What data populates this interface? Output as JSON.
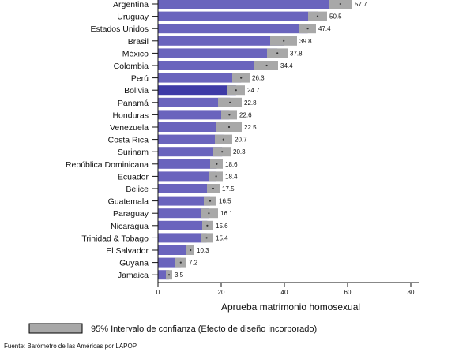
{
  "chart_data": {
    "type": "bar",
    "orientation": "horizontal",
    "categories": [
      "Argentina",
      "Uruguay",
      "Estados Unidos",
      "Brasil",
      "México",
      "Colombia",
      "Perú",
      "Bolivia",
      "Panamá",
      "Honduras",
      "Venezuela",
      "Costa Rica",
      "Surinam",
      "República Dominicana",
      "Ecuador",
      "Belice",
      "Guatemala",
      "Paraguay",
      "Nicaragua",
      "Trinidad & Tobago",
      "El Salvador",
      "Guyana",
      "Jamaica"
    ],
    "values": [
      57.7,
      50.5,
      47.4,
      39.8,
      37.8,
      34.4,
      26.3,
      24.7,
      22.8,
      22.6,
      22.5,
      20.7,
      20.3,
      18.6,
      18.4,
      17.5,
      16.5,
      16.1,
      15.6,
      15.4,
      10.3,
      7.2,
      3.5
    ],
    "value_labels": [
      "57.7",
      "50.5",
      "47.4",
      "39.8",
      "37.8",
      "34.4",
      "26.3",
      "24.7",
      "22.8",
      "22.6",
      "22.5",
      "20.7",
      "20.3",
      "18.6",
      "18.4",
      "17.5",
      "16.5",
      "16.1",
      "15.6",
      "15.4",
      "10.3",
      "7.2",
      "3.5"
    ],
    "ci_lower": [
      54.0,
      47.5,
      44.5,
      35.5,
      34.5,
      30.5,
      23.5,
      22.0,
      19.0,
      20.0,
      18.5,
      18.0,
      17.5,
      16.5,
      16.0,
      15.5,
      14.5,
      13.5,
      14.0,
      13.5,
      9.0,
      5.5,
      2.5
    ],
    "ci_upper": [
      61.5,
      53.5,
      50.0,
      44.0,
      41.0,
      38.0,
      29.0,
      27.5,
      26.5,
      25.0,
      26.5,
      23.5,
      23.0,
      20.5,
      20.5,
      19.5,
      18.5,
      19.0,
      17.5,
      17.5,
      11.5,
      9.0,
      4.5
    ],
    "highlight": "Bolivia",
    "colors": {
      "bar": "#6a64bd",
      "highlight": "#3e3aa6",
      "ci": "#a8a8a8",
      "dot": "#333333"
    },
    "xlabel": "Aprueba matrimonio homosexual",
    "xlim": [
      0,
      80
    ],
    "xticks": [
      0,
      20,
      40,
      60,
      80
    ],
    "grid": false,
    "legend": {
      "label": "95% Intervalo de confianza (Efecto de diseño incorporado)",
      "position": "bottom"
    },
    "source": "Fuente: Barómetro de las Américas por LAPOP"
  }
}
